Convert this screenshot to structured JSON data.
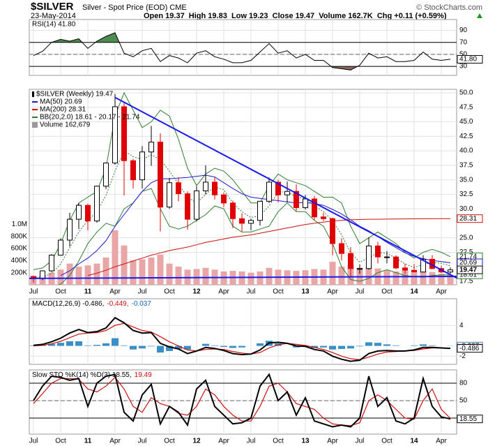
{
  "header": {
    "symbol": "$SILVER",
    "name": "Silver - Spot Price (EOD) CME",
    "date": "23-May-2014",
    "copyright": "© StockCharts.com",
    "quote": "Open 19.37  High 19.83  Low 19.23  Close 19.47  Volume 162.7K  Chg +0.11 (+0.59%)"
  },
  "chart_data": [
    {
      "type": "rsi",
      "title": "RSI(14) 41.80",
      "last_label": "41.80",
      "color": "#000000",
      "upper_fill": "#4f8a4f",
      "lower_fill": "#8b6a5f",
      "ylim": [
        15,
        108
      ],
      "yticks": [
        90,
        70,
        50,
        30
      ],
      "bands": [
        70,
        30
      ],
      "midline": 50,
      "values": [
        48,
        55,
        70,
        75,
        72,
        76,
        60,
        72,
        80,
        86,
        52,
        46,
        56,
        60,
        38,
        48,
        44,
        36,
        52,
        56,
        46,
        42,
        36,
        36,
        40,
        54,
        68,
        52,
        56,
        44,
        50,
        40,
        40,
        28,
        26,
        24,
        32,
        52,
        44,
        46,
        38,
        38,
        40,
        54,
        42,
        40,
        41.8
      ]
    },
    {
      "type": "candlestick",
      "title": "$SILVER (Weekly) 19.47",
      "up_color": "#000000",
      "down_color": "#e00000",
      "categories": [
        "Jul",
        null,
        null,
        "Oct",
        null,
        null,
        "11",
        null,
        null,
        "Apr",
        null,
        null,
        "Jul",
        null,
        null,
        "Oct",
        null,
        null,
        "12",
        null,
        null,
        "Apr",
        null,
        null,
        "Jul",
        null,
        null,
        "Oct",
        null,
        null,
        "13",
        null,
        null,
        "Apr",
        null,
        null,
        "Jul",
        null,
        null,
        "Oct",
        null,
        null,
        "14",
        null,
        null,
        "Apr",
        null
      ],
      "ylim": [
        16.9,
        50.6
      ],
      "yticks": [
        {
          "value": 50,
          "label": "50.0"
        },
        {
          "value": 47.5,
          "label": "47.5"
        },
        {
          "value": 45,
          "label": "45.0"
        },
        {
          "value": 42.5,
          "label": "42.5"
        },
        {
          "value": 40,
          "label": "40.0"
        },
        {
          "value": 37.5,
          "label": "37.5"
        },
        {
          "value": 35,
          "label": "35.0"
        },
        {
          "value": 32.5,
          "label": "32.5"
        },
        {
          "value": 30,
          "label": "30.0"
        },
        {
          "value": 25,
          "label": "25.0"
        },
        {
          "value": 22.5,
          "label": "22.5"
        },
        {
          "value": 17.5,
          "label": "17.5"
        }
      ],
      "open": [
        18.3,
        18.0,
        19.3,
        22.0,
        24.6,
        28.2,
        30.6,
        27.9,
        33.9,
        37.9,
        47.6,
        38.3,
        35.0,
        39.8,
        41.5,
        30.3,
        34.5,
        32.6,
        28.2,
        33.1,
        34.6,
        32.4,
        31.0,
        28.3,
        27.5,
        28.0,
        31.3,
        34.6,
        32.4,
        33.0,
        30.2,
        31.7,
        28.6,
        28.3,
        24.0,
        22.3,
        19.7,
        19.7,
        23.6,
        21.7,
        21.7,
        19.8,
        19.4,
        19.1,
        21.3,
        19.7,
        19.1
      ],
      "high": [
        18.5,
        19.4,
        22.2,
        24.9,
        29.3,
        31.0,
        30.9,
        34.0,
        38.0,
        49.8,
        48.5,
        38.6,
        40.8,
        44.3,
        43.0,
        35.3,
        35.4,
        33.0,
        33.9,
        37.5,
        35.4,
        32.8,
        31.4,
        29.2,
        28.3,
        31.3,
        35.4,
        35.0,
        34.7,
        34.2,
        32.4,
        32.2,
        29.3,
        28.5,
        24.9,
        23.4,
        20.4,
        25.1,
        24.3,
        22.7,
        22.0,
        20.5,
        20.5,
        22.0,
        22.0,
        20.2,
        19.9
      ],
      "low": [
        17.3,
        17.7,
        19.1,
        22.0,
        23.5,
        26.5,
        26.3,
        27.6,
        33.4,
        37.6,
        32.3,
        33.5,
        33.5,
        37.4,
        26.1,
        30.0,
        31.3,
        26.4,
        27.8,
        32.5,
        31.6,
        30.3,
        26.7,
        26.1,
        26.3,
        27.1,
        31.0,
        31.1,
        31.1,
        29.6,
        29.9,
        28.1,
        27.9,
        22.0,
        21.1,
        18.2,
        18.8,
        19.5,
        20.6,
        20.6,
        19.6,
        18.8,
        19.0,
        19.1,
        19.6,
        18.9,
        18.8
      ],
      "close": [
        18.0,
        19.3,
        22.0,
        24.6,
        28.2,
        30.6,
        27.9,
        33.9,
        37.9,
        47.6,
        38.3,
        35.0,
        39.8,
        41.5,
        30.3,
        34.5,
        32.6,
        28.2,
        33.1,
        34.6,
        32.4,
        31.0,
        28.3,
        27.5,
        28.0,
        31.3,
        34.6,
        32.4,
        33.0,
        30.2,
        31.7,
        28.6,
        28.3,
        24.0,
        22.3,
        19.7,
        19.7,
        23.6,
        21.7,
        21.7,
        19.8,
        19.4,
        19.1,
        21.3,
        19.7,
        19.1,
        19.47
      ],
      "series": [
        {
          "name": "MA(50) 20.69",
          "color": "#1a1acc",
          "values": [
            null,
            null,
            null,
            18.5,
            19.3,
            20.5,
            21.5,
            22.8,
            24.5,
            27.0,
            29.0,
            31.0,
            33.0,
            34.5,
            35.2,
            35.2,
            35.3,
            35.4,
            35.6,
            35.8,
            35.5,
            34.5,
            33.5,
            32.6,
            32.0,
            31.8,
            31.6,
            31.4,
            31.2,
            31.0,
            31.1,
            30.9,
            30.6,
            29.9,
            29.1,
            28.1,
            27.0,
            26.2,
            25.2,
            24.2,
            23.3,
            22.4,
            21.8,
            21.4,
            21.1,
            20.9,
            20.69
          ]
        },
        {
          "name": "MA(200) 28.31",
          "color": "#cc1010",
          "values": [
            null,
            null,
            null,
            null,
            null,
            null,
            18.5,
            18.9,
            19.4,
            20.0,
            20.5,
            21.0,
            21.5,
            22.0,
            22.4,
            22.8,
            23.1,
            23.4,
            23.8,
            24.2,
            24.5,
            24.8,
            25.1,
            25.3,
            25.5,
            25.8,
            26.1,
            26.4,
            26.7,
            27.0,
            27.3,
            27.5,
            27.7,
            27.9,
            28.0,
            28.1,
            28.15,
            28.2,
            28.2,
            28.22,
            28.24,
            28.26,
            28.27,
            28.28,
            28.29,
            28.3,
            28.31
          ]
        }
      ],
      "bollinger": {
        "name": "BB(20,2.0) 18.61 - 20.17 - 21.74",
        "color": "#2e7d2e",
        "upper": [
          19.5,
          19.8,
          21,
          24,
          28,
          31,
          32,
          33,
          37,
          46,
          50,
          47,
          44,
          45,
          47,
          46,
          42,
          37,
          34,
          36,
          37,
          36.5,
          35,
          33,
          31,
          31,
          34,
          36,
          35,
          34.5,
          34,
          33,
          32,
          32,
          31,
          27,
          24,
          25,
          26,
          25,
          24,
          22.5,
          21.5,
          22.5,
          23,
          22.5,
          21.74
        ],
        "middle": [
          18,
          18.3,
          18.8,
          20.5,
          23.3,
          26,
          28,
          29.5,
          32.3,
          36.5,
          40,
          39,
          38.5,
          39.3,
          38.5,
          36.5,
          34.3,
          32,
          31,
          32.5,
          33.8,
          33.3,
          31,
          29.5,
          28.5,
          28.8,
          30.5,
          32.8,
          33,
          32,
          31.8,
          30.5,
          29.5,
          28,
          25.5,
          22.4,
          20.8,
          21.5,
          22.5,
          22.3,
          21.5,
          20.5,
          19.9,
          20.4,
          20.8,
          20.6,
          20.17
        ],
        "lower": [
          16.5,
          16.8,
          16.5,
          17,
          18.5,
          21,
          24,
          26,
          27.5,
          27,
          30,
          31,
          33,
          33.5,
          30,
          27,
          26.5,
          27,
          28,
          29,
          30.5,
          30,
          27,
          26,
          26,
          26.5,
          27,
          29.5,
          31,
          29.5,
          29.5,
          28,
          27,
          24,
          20,
          17.8,
          17.5,
          18,
          19,
          19.5,
          19,
          18.5,
          18.3,
          18.2,
          18.5,
          18.6,
          18.61
        ]
      },
      "volume": {
        "name": "Volume 162,679",
        "color": "#e8a6a6",
        "values": [
          150000,
          170000,
          200000,
          250000,
          350000,
          300000,
          320000,
          350000,
          450000,
          900000,
          650000,
          400000,
          420000,
          450000,
          500000,
          350000,
          300000,
          250000,
          260000,
          280000,
          250000,
          220000,
          230000,
          220000,
          200000,
          220000,
          280000,
          250000,
          240000,
          230000,
          240000,
          260000,
          250000,
          380000,
          300000,
          330000,
          280000,
          300000,
          270000,
          240000,
          220000,
          230000,
          200000,
          230000,
          210000,
          180000,
          162679
        ]
      },
      "y2lim": [
        0,
        3230000
      ],
      "y2ticks": [
        {
          "value": 1000000,
          "label": "1.0M"
        },
        {
          "value": 800000,
          "label": "800K"
        },
        {
          "value": 600000,
          "label": "600K"
        },
        {
          "value": 400000,
          "label": "400K"
        },
        {
          "value": 200000,
          "label": "200K"
        }
      ],
      "trendlines": [
        {
          "color": "#1a1aee",
          "points": [
            [
              9,
              49.2
            ],
            [
              47.5,
              17.4
            ]
          ]
        },
        {
          "color": "#1a1aee",
          "points": [
            [
              -0.5,
              18.0
            ],
            [
              47.5,
              18.35
            ]
          ]
        }
      ],
      "grid": true
    },
    {
      "type": "macd",
      "legend": [
        {
          "text": "MACD(12,26,9) -0.486,",
          "color": "#000000"
        },
        {
          "text": "-0.449,",
          "color": "#cc1010"
        },
        {
          "text": "-0.037",
          "color": "#1565c0"
        }
      ],
      "macd_color": "#000000",
      "signal_color": "#cc1010",
      "histogram_color": "#3a8fc6",
      "ylim": [
        -3.6,
        9.2
      ],
      "yticks": [
        4,
        -2
      ],
      "macd": [
        0.1,
        0.3,
        0.8,
        1.5,
        2.5,
        3.2,
        2.6,
        2.8,
        3.5,
        5.5,
        4.5,
        3.0,
        2.5,
        2.6,
        0.5,
        -0.2,
        -0.6,
        -1.5,
        -1.0,
        -0.3,
        -0.5,
        -0.9,
        -1.5,
        -1.7,
        -1.6,
        -0.8,
        0.6,
        0.7,
        0.5,
        0.0,
        -0.1,
        -0.7,
        -1.0,
        -2.0,
        -2.6,
        -3.0,
        -2.8,
        -1.5,
        -1.0,
        -0.9,
        -1.0,
        -1.0,
        -0.8,
        -0.3,
        -0.3,
        -0.4,
        -0.486
      ],
      "signal": [
        0.0,
        0.1,
        0.4,
        0.9,
        1.6,
        2.3,
        2.5,
        2.6,
        3.0,
        4.0,
        4.4,
        3.7,
        3.0,
        2.7,
        1.8,
        0.8,
        0.0,
        -0.8,
        -1.0,
        -0.7,
        -0.6,
        -0.7,
        -1.1,
        -1.4,
        -1.6,
        -1.3,
        -0.4,
        0.2,
        0.5,
        0.3,
        0.1,
        -0.3,
        -0.7,
        -1.3,
        -2.0,
        -2.5,
        -2.7,
        -2.2,
        -1.6,
        -1.2,
        -1.1,
        -1.0,
        -0.9,
        -0.6,
        -0.4,
        -0.4,
        -0.449
      ],
      "histogram": [
        0.1,
        0.2,
        0.4,
        0.6,
        0.9,
        0.9,
        0.1,
        0.2,
        0.5,
        1.5,
        0.1,
        -0.7,
        -0.5,
        -0.1,
        -1.3,
        -1.0,
        -0.6,
        -0.7,
        0.0,
        0.4,
        0.1,
        -0.2,
        -0.4,
        -0.3,
        0.0,
        0.5,
        1.0,
        0.5,
        0.0,
        -0.3,
        -0.2,
        -0.4,
        -0.3,
        -0.7,
        -0.6,
        -0.5,
        -0.1,
        0.7,
        0.6,
        0.3,
        0.1,
        0.0,
        0.1,
        0.3,
        0.1,
        0.0,
        -0.037
      ]
    },
    {
      "type": "stochastic",
      "legend": [
        {
          "text": "Slow STO %K(14) %D(3) 18.55,",
          "color": "#000000"
        },
        {
          "text": "19.49",
          "color": "#cc1010"
        }
      ],
      "k_color": "#000000",
      "d_color": "#cc1010",
      "categories": [
        "Jul",
        null,
        null,
        "Oct",
        null,
        null,
        "11",
        null,
        null,
        "Apr",
        null,
        null,
        "Jul",
        null,
        null,
        "Oct",
        null,
        null,
        "12",
        null,
        null,
        "Apr",
        null,
        null,
        "Jul",
        null,
        null,
        "Oct",
        null,
        null,
        "13",
        null,
        null,
        "Apr",
        null,
        null,
        "Jul",
        null,
        null,
        "Oct",
        null,
        null,
        "14",
        null,
        null,
        "Apr",
        null
      ],
      "ylim": [
        -7.6,
        102.8
      ],
      "yticks": [
        80,
        50,
        20
      ],
      "bands": [
        80,
        20
      ],
      "midline": 50,
      "k": [
        50,
        75,
        92,
        90,
        85,
        88,
        40,
        80,
        92,
        95,
        30,
        15,
        60,
        78,
        10,
        40,
        30,
        8,
        70,
        85,
        40,
        25,
        10,
        12,
        20,
        75,
        95,
        50,
        65,
        25,
        55,
        15,
        10,
        5,
        8,
        5,
        20,
        92,
        40,
        55,
        15,
        10,
        20,
        88,
        40,
        22,
        18.55
      ],
      "d": [
        45,
        62,
        80,
        88,
        88,
        87,
        70,
        65,
        75,
        90,
        70,
        40,
        30,
        55,
        45,
        40,
        28,
        25,
        40,
        70,
        60,
        40,
        25,
        15,
        15,
        40,
        75,
        80,
        65,
        45,
        40,
        35,
        20,
        10,
        8,
        7,
        12,
        50,
        60,
        50,
        35,
        20,
        18,
        50,
        70,
        35,
        19.49
      ]
    }
  ]
}
